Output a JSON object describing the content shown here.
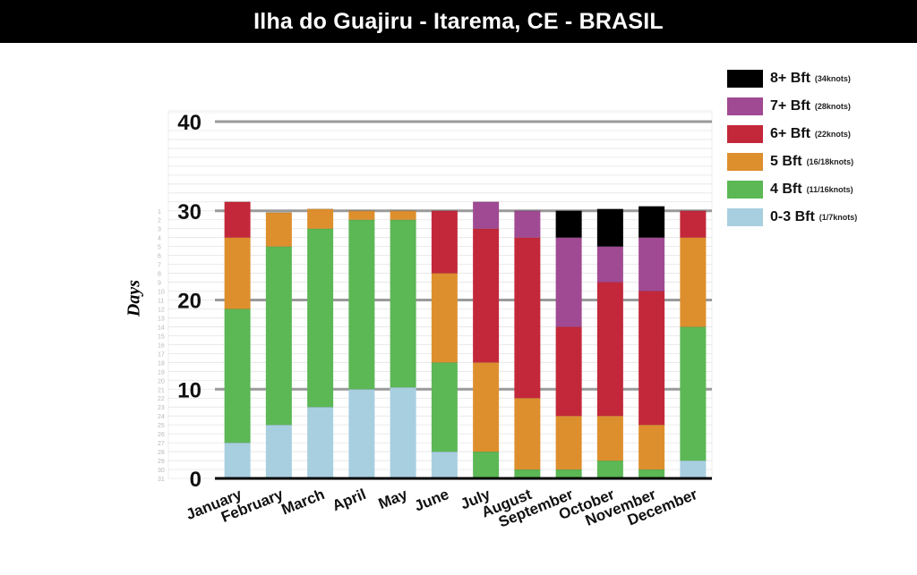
{
  "title": "Ilha do Guajiru - Itarema, CE - BRASIL",
  "chart_data": {
    "type": "bar",
    "stacked": true,
    "ylabel": "Days",
    "xlabel": "",
    "ylim": [
      0,
      40
    ],
    "yticks": [
      0,
      10,
      20,
      30,
      40
    ],
    "day_labels": [
      "1",
      "2",
      "3",
      "4",
      "5",
      "6",
      "7",
      "8",
      "9",
      "10",
      "11",
      "12",
      "13",
      "14",
      "15",
      "16",
      "17",
      "18",
      "19",
      "20",
      "21",
      "22",
      "23",
      "24",
      "25",
      "26",
      "27",
      "28",
      "29",
      "30",
      "31"
    ],
    "categories": [
      "January",
      "February",
      "March",
      "April",
      "May",
      "June",
      "July",
      "August",
      "September",
      "October",
      "November",
      "December"
    ],
    "series": [
      {
        "name": "0-3 Bft",
        "note": "(1/7knots)",
        "color": "#a8cfe0",
        "values": [
          4,
          6,
          8,
          10,
          10.2,
          3,
          0,
          0,
          0,
          0,
          0,
          2
        ]
      },
      {
        "name": "4 Bft",
        "note": "(11/16knots)",
        "color": "#5cb755",
        "values": [
          15,
          20,
          20,
          19,
          18.8,
          10,
          3,
          1,
          1,
          2,
          1,
          15
        ]
      },
      {
        "name": "5 Bft",
        "note": "(16/18knots)",
        "color": "#de8f2d",
        "values": [
          8,
          3.8,
          2.2,
          1,
          1,
          10,
          10,
          8,
          6,
          5,
          5,
          10
        ]
      },
      {
        "name": "6+ Bft",
        "note": "(22knots)",
        "color": "#c3283a",
        "values": [
          4,
          0,
          0,
          0,
          0,
          7,
          15,
          18,
          10,
          15,
          15,
          3
        ]
      },
      {
        "name": "7+ Bft",
        "note": "(28knots)",
        "color": "#a04a93",
        "values": [
          0,
          0,
          0,
          0,
          0,
          0,
          3,
          3,
          10,
          4,
          6,
          0
        ]
      },
      {
        "name": "8+ Bft",
        "note": "(34knots)",
        "color": "#000000",
        "values": [
          0,
          0,
          0,
          0,
          0,
          0,
          0,
          0,
          3,
          4.2,
          3.5,
          0
        ]
      }
    ],
    "legend_order": [
      5,
      4,
      3,
      2,
      1,
      0
    ],
    "legend_position": "top-right",
    "grid": true
  }
}
